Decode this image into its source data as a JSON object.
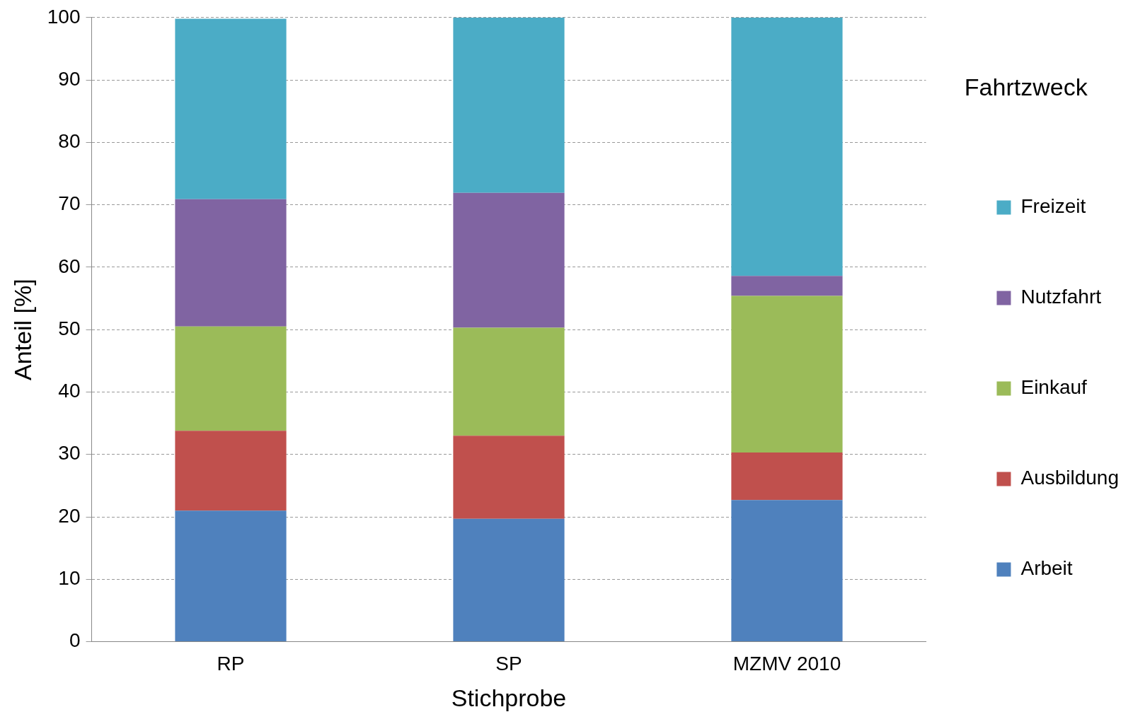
{
  "chart_data": {
    "type": "bar",
    "stacked": true,
    "xlabel": "Stichprobe",
    "ylabel": "Anteil [%]",
    "legend_title": "Fahrtzweck",
    "legend": "right",
    "grid": "y",
    "categories": [
      "RP",
      "SP",
      "MZMV 2010"
    ],
    "ylim": [
      0,
      100
    ],
    "yticks": [
      0,
      10,
      20,
      30,
      40,
      50,
      60,
      70,
      80,
      90,
      100
    ],
    "series": [
      {
        "name": "Arbeit",
        "color": "#4f81bd",
        "values": [
          21.0,
          19.7,
          22.7
        ]
      },
      {
        "name": "Ausbildung",
        "color": "#c0504d",
        "values": [
          12.8,
          13.3,
          7.6
        ]
      },
      {
        "name": "Einkauf",
        "color": "#9bbb59",
        "values": [
          16.7,
          17.3,
          25.1
        ]
      },
      {
        "name": "Nutzfahrt",
        "color": "#8064a2",
        "values": [
          20.4,
          21.6,
          3.2
        ]
      },
      {
        "name": "Freizeit",
        "color": "#4bacc6",
        "values": [
          28.9,
          28.1,
          41.4
        ]
      }
    ]
  }
}
